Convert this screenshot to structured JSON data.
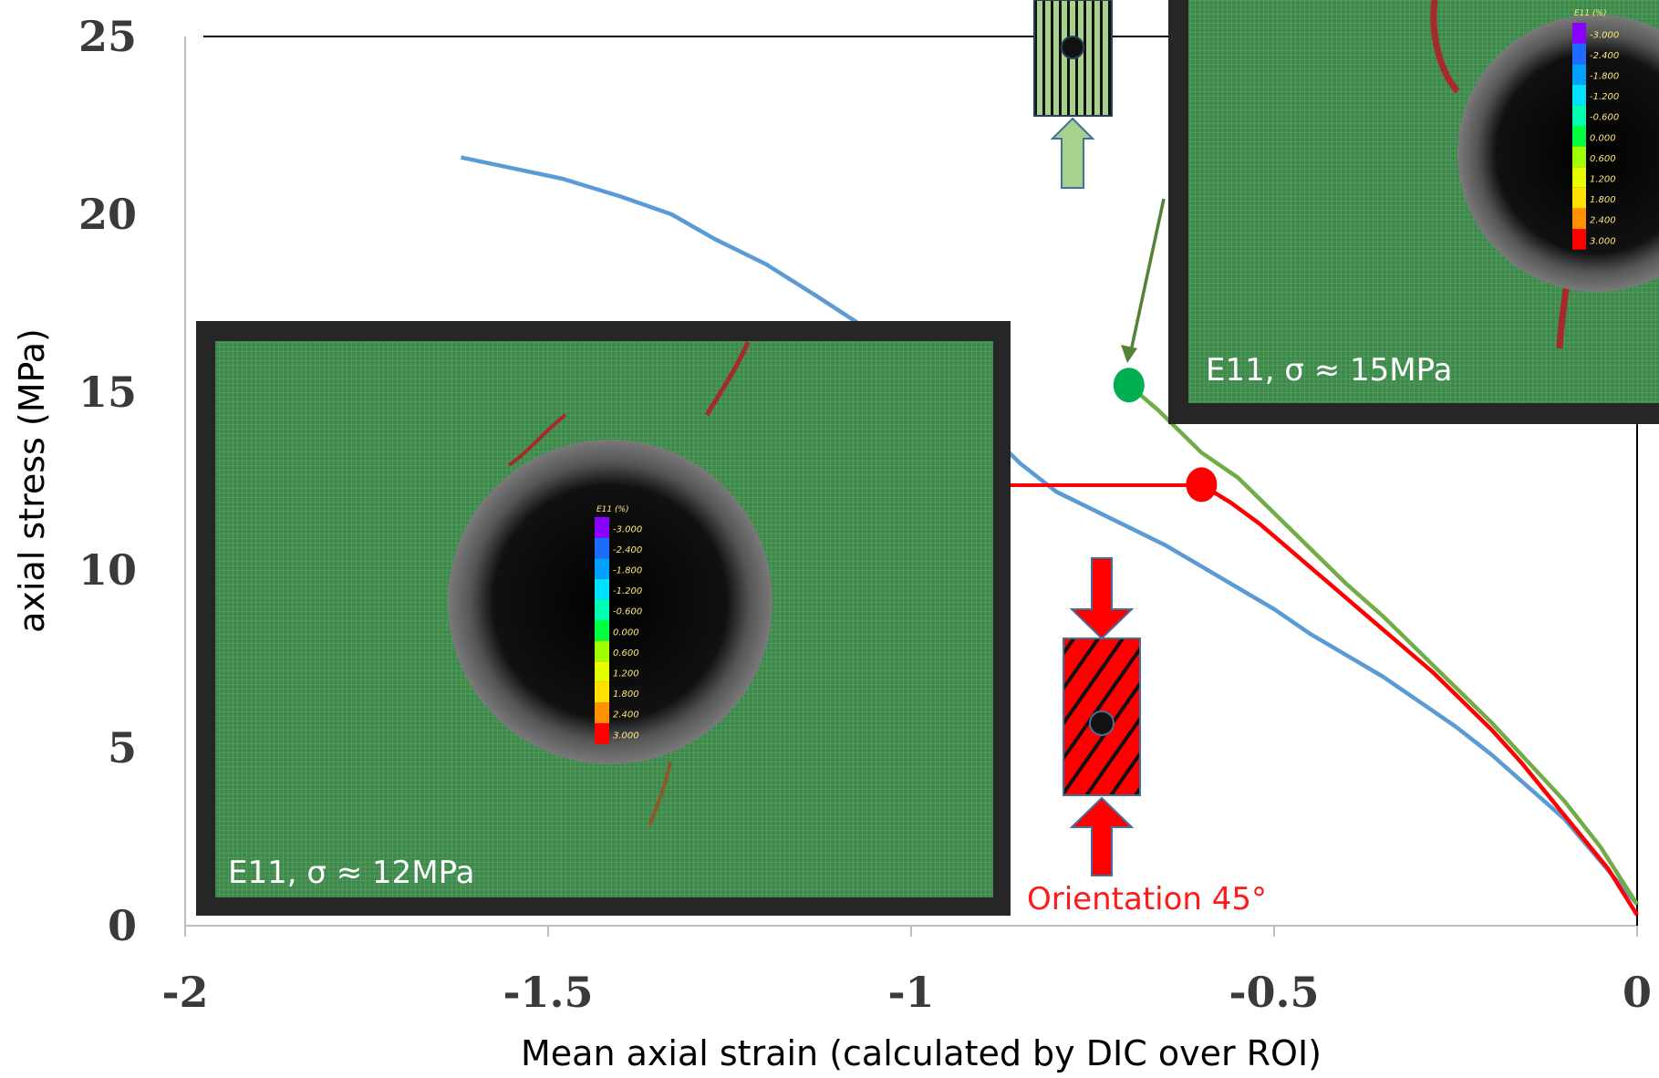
{
  "chart_data": {
    "type": "line",
    "xlabel": "Mean axial strain (calculated by DIC over ROI)",
    "ylabel": "axial stress (MPa)",
    "xlim": [
      -2,
      0
    ],
    "ylim": [
      0,
      25
    ],
    "x_ticks": [
      "-2",
      "-1.5",
      "-1",
      "-0.5",
      "0"
    ],
    "y_ticks": [
      "0",
      "5",
      "10",
      "15",
      "20",
      "25"
    ],
    "grid": false,
    "series": [
      {
        "color": "#5b9bd5",
        "points": [
          [
            -1.62,
            21.6
          ],
          [
            -1.55,
            21.3
          ],
          [
            -1.48,
            21.0
          ],
          [
            -1.4,
            20.5
          ],
          [
            -1.33,
            20.0
          ],
          [
            -1.27,
            19.3
          ],
          [
            -1.2,
            18.6
          ],
          [
            -1.13,
            17.7
          ],
          [
            -1.07,
            16.9
          ],
          [
            -1.0,
            16.0
          ],
          [
            -0.95,
            15.0
          ],
          [
            -0.9,
            14.0
          ],
          [
            -0.85,
            13.0
          ],
          [
            -0.8,
            12.2
          ],
          [
            -0.75,
            11.7
          ],
          [
            -0.7,
            11.2
          ],
          [
            -0.65,
            10.7
          ],
          [
            -0.6,
            10.1
          ],
          [
            -0.55,
            9.5
          ],
          [
            -0.5,
            8.9
          ],
          [
            -0.45,
            8.2
          ],
          [
            -0.4,
            7.6
          ],
          [
            -0.35,
            7.0
          ],
          [
            -0.3,
            6.3
          ],
          [
            -0.25,
            5.6
          ],
          [
            -0.2,
            4.8
          ],
          [
            -0.15,
            3.9
          ],
          [
            -0.1,
            3.0
          ],
          [
            -0.05,
            1.8
          ],
          [
            0.0,
            0.6
          ]
        ]
      },
      {
        "color": "#ff0000",
        "points": [
          [
            -0.6,
            12.4
          ],
          [
            -0.56,
            11.9
          ],
          [
            -0.52,
            11.3
          ],
          [
            -0.48,
            10.6
          ],
          [
            -0.44,
            9.9
          ],
          [
            -0.4,
            9.2
          ],
          [
            -0.36,
            8.5
          ],
          [
            -0.32,
            7.8
          ],
          [
            -0.28,
            7.1
          ],
          [
            -0.24,
            6.3
          ],
          [
            -0.2,
            5.5
          ],
          [
            -0.16,
            4.6
          ],
          [
            -0.12,
            3.6
          ],
          [
            -0.08,
            2.6
          ],
          [
            -0.04,
            1.6
          ],
          [
            0.0,
            0.3
          ]
        ]
      },
      {
        "color": "#70ad47",
        "points": [
          [
            -0.7,
            15.2
          ],
          [
            -0.66,
            14.5
          ],
          [
            -0.6,
            13.3
          ],
          [
            -0.55,
            12.6
          ],
          [
            -0.5,
            11.6
          ],
          [
            -0.45,
            10.6
          ],
          [
            -0.4,
            9.6
          ],
          [
            -0.35,
            8.7
          ],
          [
            -0.3,
            7.7
          ],
          [
            -0.25,
            6.7
          ],
          [
            -0.2,
            5.7
          ],
          [
            -0.15,
            4.6
          ],
          [
            -0.1,
            3.5
          ],
          [
            -0.05,
            2.2
          ],
          [
            0.0,
            0.6
          ]
        ]
      }
    ],
    "markers": [
      {
        "x": -0.7,
        "y": 15.2,
        "color": "#00b050"
      },
      {
        "x": -0.6,
        "y": 12.4,
        "color": "#ff0000"
      }
    ],
    "colorbar": {
      "title": "E11 (%)",
      "labels": [
        "-3.000",
        "-2.400",
        "-1.800",
        "-1.200",
        "-0.600",
        "0.000",
        "0.600",
        "1.200",
        "1.800",
        "2.400",
        "3.000"
      ],
      "colors": [
        "#8c00ff",
        "#1f6bff",
        "#00a0ff",
        "#00e0ff",
        "#00ffb0",
        "#00ff40",
        "#a0ff00",
        "#e6ff00",
        "#ffe000",
        "#ff9000",
        "#ff0000"
      ]
    },
    "annotations": {
      "inset_small": "E11, σ ≈ 12MPa",
      "inset_large": "E11, σ ≈ 15MPa",
      "orientation": "Orientation 45°"
    }
  }
}
